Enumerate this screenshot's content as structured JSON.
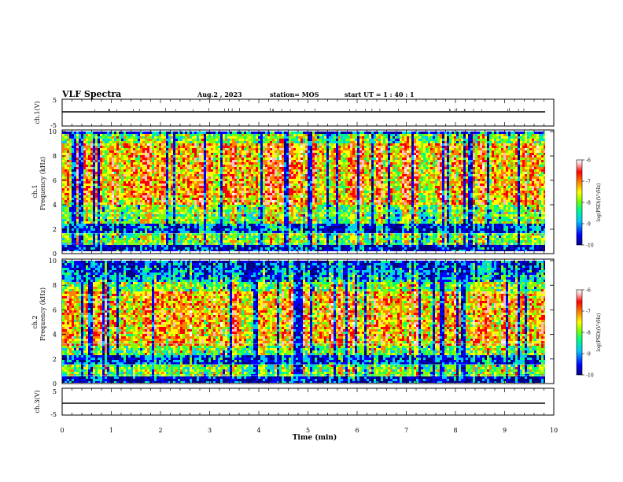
{
  "header": {
    "title": "VLF Spectra",
    "date": "Aug.2  , 2023",
    "station": "station= MOS",
    "start": "start  UT =   1 : 40 : 1"
  },
  "chart_data": [
    {
      "type": "line",
      "name": "ch1-waveform",
      "ylabel": "ch.1(V)",
      "ylim": [
        -5,
        5
      ],
      "yticks": [
        "5",
        "-5"
      ],
      "xlim": [
        0,
        10
      ],
      "series": [
        {
          "x": [
            0,
            9.84
          ],
          "y": [
            0.5,
            0.5
          ]
        }
      ]
    },
    {
      "type": "heatmap",
      "name": "ch1-spectrogram",
      "ylabel": "ch.1\nFrequency (kHz)",
      "ylim": [
        0,
        10
      ],
      "yticks": [
        "0",
        "2",
        "4",
        "6",
        "8",
        "10"
      ],
      "xlim": [
        0,
        9.84
      ],
      "colorbar": {
        "label": "log(PSD)(V²/Hz)",
        "range": [
          -10,
          -6
        ],
        "ticks": [
          "-6",
          "-7",
          "-8",
          "-9",
          "-10"
        ]
      },
      "dominant_band_khz": [
        4,
        9
      ]
    },
    {
      "type": "heatmap",
      "name": "ch2-spectrogram",
      "ylabel": "ch.2\nFrequency (kHz)",
      "ylim": [
        0,
        10
      ],
      "yticks": [
        "0",
        "2",
        "4",
        "6",
        "8",
        "10"
      ],
      "xlim": [
        0,
        9.84
      ],
      "colorbar": {
        "label": "log(PSD)(V²/Hz)",
        "range": [
          -10,
          -6
        ],
        "ticks": [
          "-6",
          "-7",
          "-8",
          "-9",
          "-10"
        ]
      },
      "dominant_band_khz": [
        3,
        7.5
      ]
    },
    {
      "type": "line",
      "name": "ch3-waveform",
      "ylabel": "ch.3(V)",
      "ylim": [
        -5,
        5
      ],
      "yticks": [
        "5",
        "-5"
      ],
      "xlim": [
        0,
        10
      ],
      "series": [
        {
          "x": [
            0,
            9.84
          ],
          "y": [
            0,
            0
          ]
        }
      ]
    }
  ],
  "xaxis": {
    "label": "Time  (min)",
    "ticks": [
      "0",
      "1",
      "2",
      "3",
      "4",
      "5",
      "6",
      "7",
      "8",
      "9",
      "10"
    ],
    "xlim": [
      0,
      10
    ]
  },
  "colors": {
    "colormap": [
      "#000080",
      "#0000ff",
      "#00c8ff",
      "#00ff80",
      "#80ff00",
      "#ffff00",
      "#ff8000",
      "#ff0000",
      "#ffc0c0",
      "#ffffff"
    ]
  }
}
